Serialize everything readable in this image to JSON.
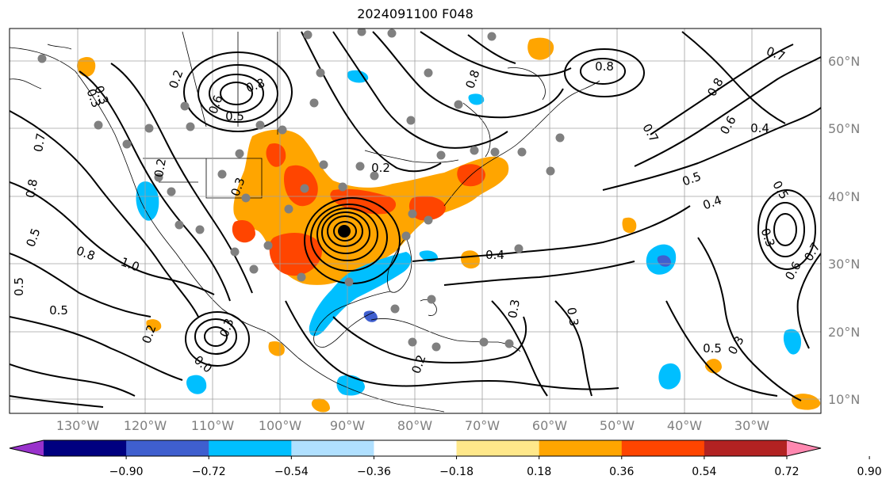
{
  "title": "2024091100 F048",
  "lat_labels": [
    "60°N",
    "50°N",
    "40°N",
    "30°N",
    "20°N",
    "10°N"
  ],
  "lon_labels": [
    "130°W",
    "120°W",
    "110°W",
    "100°W",
    "90°W",
    "80°W",
    "70°W",
    "60°W",
    "50°W",
    "40°W",
    "30°W"
  ],
  "colorbar": {
    "ticks": [
      "−0.90",
      "−0.72",
      "−0.54",
      "−0.36",
      "−0.18",
      "0.18",
      "0.36",
      "0.54",
      "0.72",
      "0.90"
    ],
    "colors": [
      "#9932cc",
      "#000080",
      "#3f5fcf",
      "#00bfff",
      "#b0e0ff",
      "#ffffff",
      "#ffe88a",
      "#ffa500",
      "#ff4500",
      "#b22222",
      "#ff88b0"
    ]
  },
  "contour_labels": [
    "0.2",
    "0.2",
    "0.3",
    "0.5",
    "0.6",
    "0.8",
    "0.8",
    "0.8",
    "0.7",
    "0.8",
    "0.6",
    "0.7",
    "0.4",
    "0.5",
    "0.5",
    "0.4",
    "0.3",
    "0.7",
    "0.6",
    "0.5",
    "0.3",
    "0.3",
    "0.3",
    "0.4",
    "0.2",
    "0.3",
    "1.0",
    "0.8",
    "0.5",
    "0.5",
    "0.5",
    "0.8",
    "0.7",
    "0.3",
    "0.3",
    "0.2",
    "0.2",
    "0.0"
  ],
  "colors": {
    "positive_orange": "#ffa500",
    "positive_red": "#ff4500",
    "negative_blue": "#00bfff",
    "negative_light": "#b0e0ff",
    "station_dots": "#808080",
    "gridlines": "#a0a0a0"
  }
}
